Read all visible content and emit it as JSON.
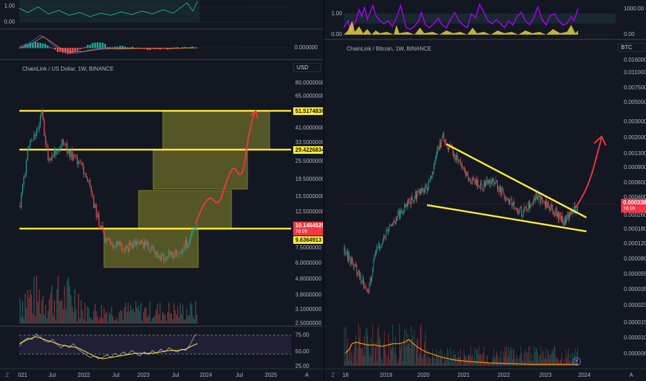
{
  "left": {
    "title": "ChainLink / US Dollar, 1W, BINANCE",
    "unit": "USD",
    "top_panel_ticks": [
      "1.00",
      "0.00"
    ],
    "macd_tick": "0.000000",
    "price_ticks": [
      "80.0000000",
      "65.0000000",
      "41.0000000",
      "33.5000000",
      "25.5000000",
      "19.5000000",
      "15.5000000",
      "12.5000000",
      "7.5000000",
      "6.0000000",
      "4.8000000",
      "3.8000000",
      "3.1000000",
      "2.5000000"
    ],
    "badges": {
      "level_top": "51.5174830",
      "level_mid": "29.4226834",
      "price": "10.1454520",
      "price_time": "7d 0h",
      "level_low": "9.6364913"
    },
    "rsi_ticks": [
      "75.00",
      "50.00",
      "25.00"
    ],
    "x_labels": [
      "021",
      "Jul",
      "2022",
      "Jul",
      "2023",
      "Jul",
      "2024",
      "Jul",
      "2025"
    ],
    "corner": "A"
  },
  "right": {
    "title": "ChainLink / Bitcoin, 1W, BINANCE",
    "unit": "BTC",
    "top_ticks_left": [
      "1.00",
      "0.00"
    ],
    "top_ticks_right": [
      "1000.00",
      "0.00"
    ],
    "price_ticks": [
      "0.0160000",
      "0.0110000",
      "0.0075000",
      "0.0050000",
      "0.0030000",
      "0.0020000",
      "0.0013000",
      "0.0009000",
      "0.0006000",
      "0.0004000",
      "0.0002600",
      "0.0001800",
      "0.0001200",
      "0.0000800",
      "0.0000550",
      "0.0000350",
      "0.0000230",
      "0.0000150",
      "0.0000100",
      "0.0000065"
    ],
    "price_badge": "0.0003385",
    "price_time": "7d 0h",
    "x_labels": [
      "18",
      "2019",
      "2020",
      "2021",
      "2022",
      "2023",
      "2024"
    ],
    "corner": "A"
  },
  "colors": {
    "bg": "#131722",
    "grid": "#1e222d",
    "up": "#26a69a",
    "down": "#ef5350",
    "yellow": "#ffeb3b",
    "arrow": "#f23645"
  }
}
